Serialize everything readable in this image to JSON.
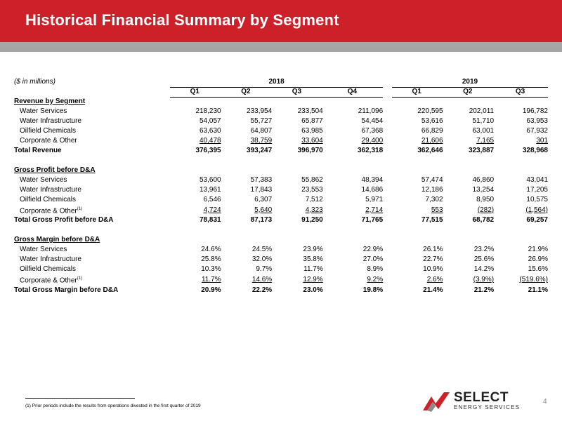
{
  "header": {
    "title": "Historical Financial Summary by Segment"
  },
  "table": {
    "units": "($ in millions)",
    "years": [
      "2018",
      "2019"
    ],
    "quarters": [
      "Q1",
      "Q2",
      "Q3",
      "Q4",
      "Q1",
      "Q2",
      "Q3"
    ],
    "sections": [
      {
        "title": "Revenue by Segment",
        "rows": [
          {
            "label": "Water Services",
            "values": [
              "218,230",
              "233,954",
              "233,504",
              "211,096",
              "220,595",
              "202,011",
              "196,782"
            ]
          },
          {
            "label": "Water Infrastructure",
            "values": [
              "54,057",
              "55,727",
              "65,877",
              "54,454",
              "53,616",
              "51,710",
              "63,953"
            ]
          },
          {
            "label": "Oilfield Chemicals",
            "values": [
              "63,630",
              "64,807",
              "63,985",
              "67,368",
              "66,829",
              "63,001",
              "67,932"
            ]
          },
          {
            "label": "Corporate & Other",
            "values": [
              "40,478",
              "38,759",
              "33,604",
              "29,400",
              "21,606",
              "7,165",
              "301"
            ]
          }
        ],
        "total": {
          "label": "Total Revenue",
          "values": [
            "376,395",
            "393,247",
            "396,970",
            "362,318",
            "362,646",
            "323,887",
            "328,968"
          ]
        }
      },
      {
        "title": "Gross Profit before D&A",
        "rows": [
          {
            "label": "Water Services",
            "values": [
              "53,600",
              "57,383",
              "55,862",
              "48,394",
              "57,474",
              "46,860",
              "43,041"
            ]
          },
          {
            "label": "Water Infrastructure",
            "values": [
              "13,961",
              "17,843",
              "23,553",
              "14,686",
              "12,186",
              "13,254",
              "17,205"
            ]
          },
          {
            "label": "Oilfield Chemicals",
            "values": [
              "6,546",
              "6,307",
              "7,512",
              "5,971",
              "7,302",
              "8,950",
              "10,575"
            ]
          },
          {
            "label": "Corporate & Other",
            "sup": "(1)",
            "values": [
              "4,724",
              "5,640",
              "4,323",
              "2,714",
              "553",
              "(282)",
              "(1,564)"
            ]
          }
        ],
        "total": {
          "label": "Total Gross Profit before D&A",
          "values": [
            "78,831",
            "87,173",
            "91,250",
            "71,765",
            "77,515",
            "68,782",
            "69,257"
          ]
        }
      },
      {
        "title": "Gross Margin before D&A",
        "rows": [
          {
            "label": "Water Services",
            "values": [
              "24.6%",
              "24.5%",
              "23.9%",
              "22.9%",
              "26.1%",
              "23.2%",
              "21.9%"
            ]
          },
          {
            "label": "Water Infrastructure",
            "values": [
              "25.8%",
              "32.0%",
              "35.8%",
              "27.0%",
              "22.7%",
              "25.6%",
              "26.9%"
            ]
          },
          {
            "label": "Oilfield Chemicals",
            "values": [
              "10.3%",
              "9.7%",
              "11.7%",
              "8.9%",
              "10.9%",
              "14.2%",
              "15.6%"
            ]
          },
          {
            "label": "Corporate & Other",
            "sup": "(1)",
            "values": [
              "11.7%",
              "14.6%",
              "12.9%",
              "9.2%",
              "2.6%",
              "(3.9%)",
              "(519.6%)"
            ]
          }
        ],
        "total": {
          "label": "Total Gross Margin before D&A",
          "values": [
            "20.9%",
            "22.2%",
            "23.0%",
            "19.8%",
            "21.4%",
            "21.2%",
            "21.1%"
          ]
        }
      }
    ]
  },
  "footer": {
    "footnote": "(1) Prior periods include the results from operations divested in the first quarter of 2019",
    "page_number": "4",
    "logo_name": "SELECT",
    "logo_tagline": "ENERGY SERVICES"
  },
  "colors": {
    "brand_red": "#cc2128",
    "header_gray": "#a9a9a9"
  }
}
